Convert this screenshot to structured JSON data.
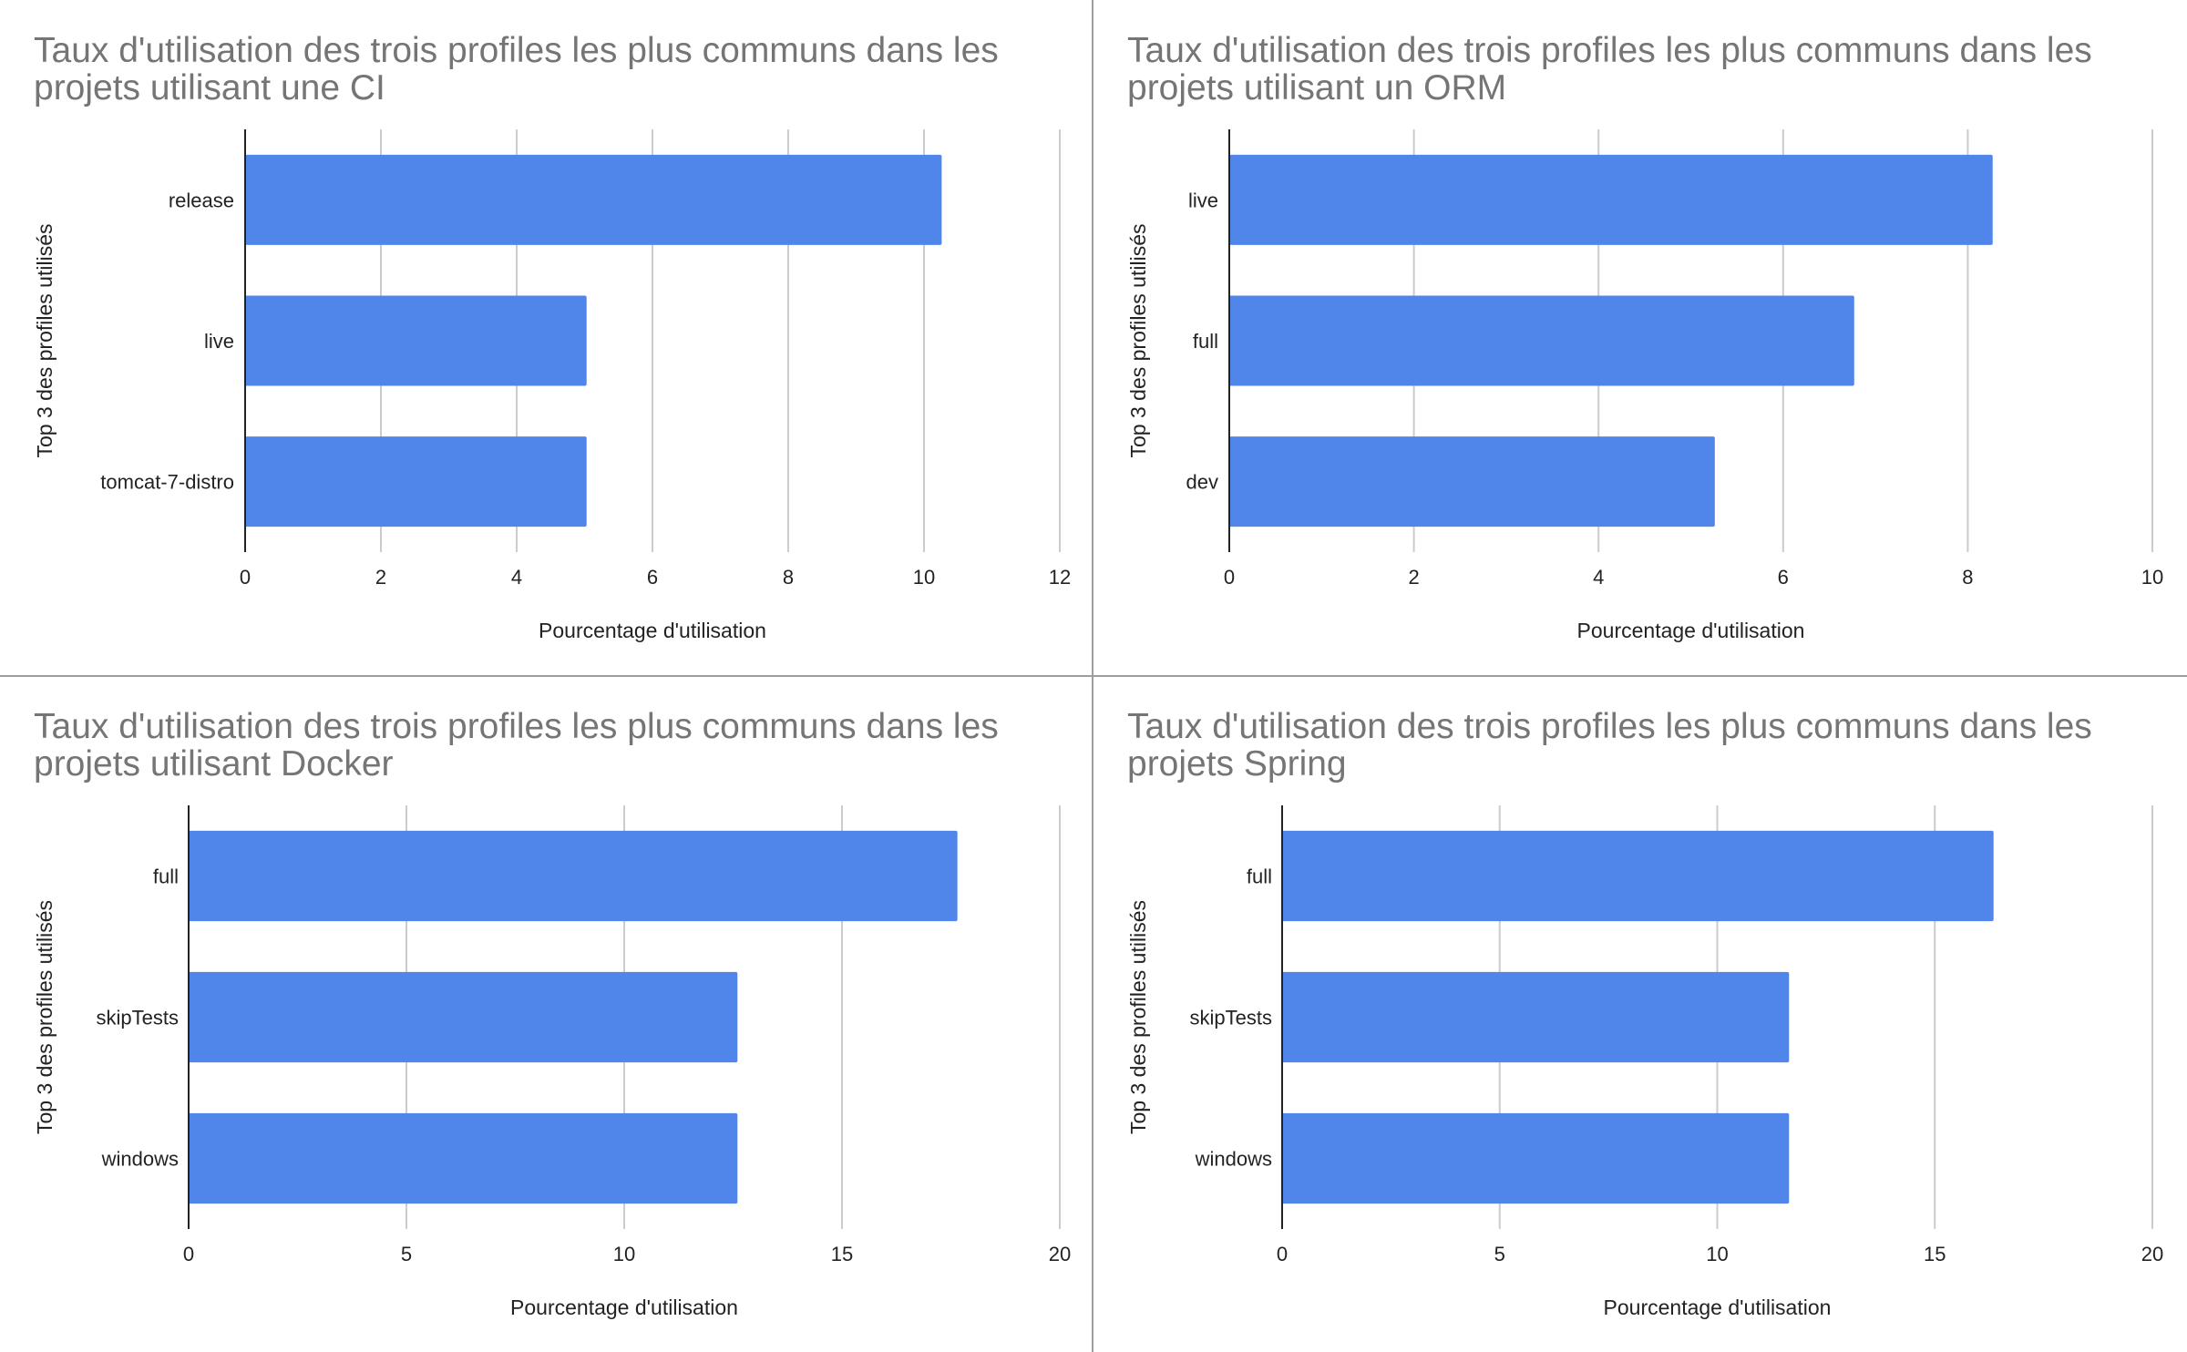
{
  "colors": {
    "bar": "#5086ea",
    "title": "#757575",
    "text": "#222222",
    "grid": "#cccccc",
    "divider": "#9e9e9e"
  },
  "chart_data": [
    {
      "type": "bar",
      "orientation": "horizontal",
      "title_lines": [
        "Taux d'utilisation des trois profiles les plus communs dans les",
        "projets utilisant une CI"
      ],
      "xlabel": "Pourcentage d'utilisation",
      "ylabel": "Top 3 des profiles utilisés",
      "categories": [
        "release",
        "live",
        "tomcat-7-distro"
      ],
      "values": [
        10.26,
        5.03,
        5.03
      ],
      "xlim": [
        0,
        12
      ],
      "xticks": [
        "0",
        "2",
        "4",
        "6",
        "8",
        "10",
        "12"
      ],
      "grid": true,
      "legend": "none"
    },
    {
      "type": "bar",
      "orientation": "horizontal",
      "title_lines": [
        "Taux d'utilisation des trois profiles les plus communs dans les",
        "projets utilisant un ORM"
      ],
      "xlabel": "Pourcentage d'utilisation",
      "ylabel": "Top 3 des profiles utilisés",
      "categories": [
        "live",
        "full",
        "dev"
      ],
      "values": [
        8.27,
        6.77,
        5.26
      ],
      "xlim": [
        0,
        10
      ],
      "xticks": [
        "0",
        "2",
        "4",
        "6",
        "8",
        "10"
      ],
      "grid": true,
      "legend": "none"
    },
    {
      "type": "bar",
      "orientation": "horizontal",
      "title_lines": [
        "Taux d'utilisation des trois profiles les plus communs dans les",
        "projets utilisant Docker"
      ],
      "xlabel": "Pourcentage d'utilisation",
      "ylabel": "Top 3 des profiles utilisés",
      "categories": [
        "full",
        "skipTests",
        "windows"
      ],
      "values": [
        17.65,
        12.6,
        12.6
      ],
      "xlim": [
        0,
        20
      ],
      "xticks": [
        "0",
        "5",
        "10",
        "15",
        "20"
      ],
      "grid": true,
      "legend": "none"
    },
    {
      "type": "bar",
      "orientation": "horizontal",
      "title_lines": [
        "Taux d'utilisation des trois profiles les plus communs dans les",
        "projets Spring"
      ],
      "xlabel": "Pourcentage d'utilisation",
      "ylabel": "Top 3 des profiles utilisés",
      "categories": [
        "full",
        "skipTests",
        "windows"
      ],
      "values": [
        16.35,
        11.65,
        11.65
      ],
      "xlim": [
        0,
        20
      ],
      "xticks": [
        "0",
        "5",
        "10",
        "15",
        "20"
      ],
      "grid": true,
      "legend": "none"
    }
  ]
}
